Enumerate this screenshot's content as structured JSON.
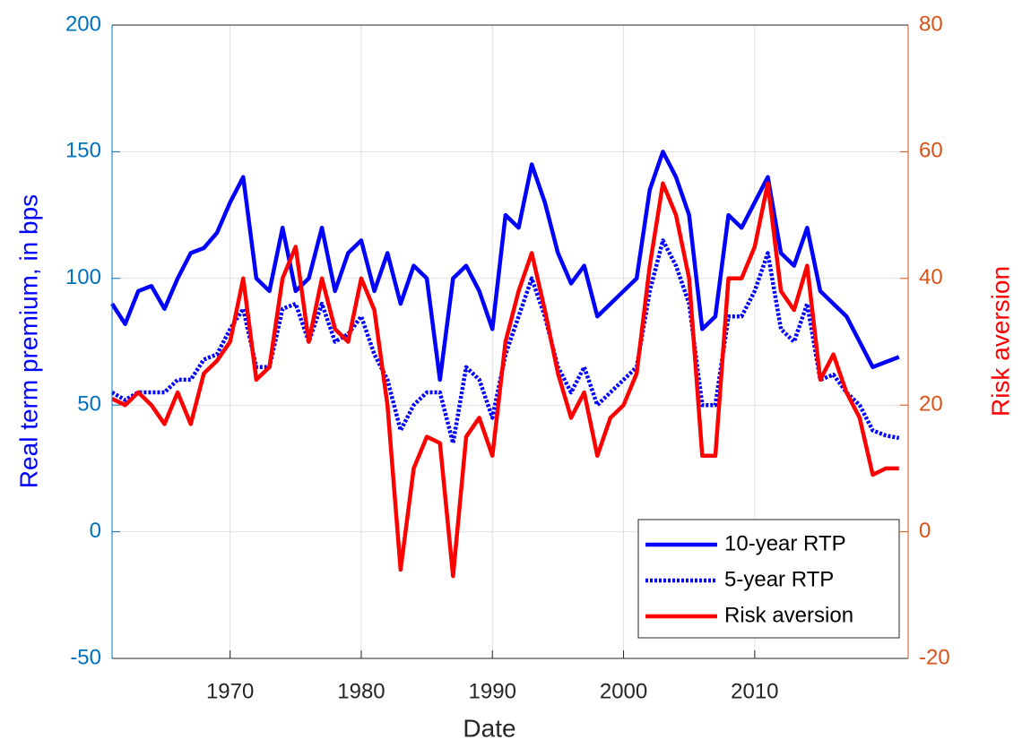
{
  "chart_data": {
    "type": "line",
    "x_label": "Date",
    "y_label": "Real term premium, in bps",
    "y2_label": "Risk aversion",
    "x": [
      1961,
      1962,
      1963,
      1964,
      1965,
      1966,
      1967,
      1968,
      1969,
      1970,
      1971,
      1972,
      1973,
      1974,
      1975,
      1976,
      1977,
      1978,
      1979,
      1980,
      1981,
      1982,
      1983,
      1984,
      1985,
      1986,
      1987,
      1988,
      1989,
      1990,
      1991,
      1992,
      1993,
      1994,
      1995,
      1996,
      1997,
      1998,
      1999,
      2000,
      2001,
      2002,
      2003,
      2004,
      2005,
      2006,
      2007,
      2008,
      2009,
      2010,
      2011,
      2012,
      2013,
      2014,
      2015,
      2016,
      2017,
      2018,
      2019,
      2020,
      2021
    ],
    "series": [
      {
        "name": "10-year RTP",
        "color": "#0000ff",
        "line_style": "solid",
        "axis": "y",
        "values": [
          90,
          82,
          95,
          97,
          88,
          100,
          110,
          112,
          118,
          130,
          140,
          100,
          95,
          120,
          95,
          100,
          120,
          95,
          110,
          115,
          95,
          110,
          90,
          105,
          100,
          60,
          100,
          105,
          95,
          80,
          125,
          120,
          145,
          130,
          110,
          98,
          105,
          85,
          90,
          95,
          100,
          135,
          150,
          140,
          125,
          80,
          85,
          125,
          120,
          130,
          140,
          110,
          105,
          120,
          95,
          90,
          85,
          75,
          65,
          67,
          69
        ]
      },
      {
        "name": "5-year RTP",
        "color": "#0000ff",
        "line_style": "dotted",
        "axis": "y",
        "values": [
          55,
          52,
          55,
          55,
          55,
          60,
          60,
          68,
          70,
          80,
          88,
          65,
          65,
          88,
          90,
          75,
          90,
          75,
          78,
          85,
          70,
          60,
          40,
          50,
          55,
          55,
          35,
          65,
          60,
          45,
          70,
          85,
          100,
          85,
          65,
          55,
          65,
          50,
          55,
          60,
          65,
          95,
          115,
          105,
          90,
          50,
          50,
          85,
          85,
          95,
          110,
          80,
          75,
          90,
          60,
          62,
          55,
          50,
          40,
          38,
          37
        ]
      },
      {
        "name": "Risk aversion",
        "color": "#ff0000",
        "line_style": "solid",
        "axis": "y2",
        "values": [
          21,
          20,
          22,
          20,
          17,
          22,
          17,
          25,
          27,
          30,
          40,
          24,
          26,
          40,
          45,
          30,
          40,
          32,
          30,
          40,
          35,
          20,
          -6,
          10,
          15,
          14,
          -7,
          15,
          18,
          12,
          30,
          38,
          44,
          35,
          25,
          18,
          22,
          12,
          18,
          20,
          25,
          42,
          55,
          50,
          40,
          12,
          12,
          40,
          40,
          45,
          55,
          38,
          35,
          42,
          24,
          28,
          22,
          18,
          9,
          10,
          10
        ]
      }
    ],
    "xlim": [
      1961,
      2021.7
    ],
    "xticks": [
      1970,
      1980,
      1990,
      2000,
      2010
    ],
    "ylim": [
      -50,
      200
    ],
    "yticks": [
      -50,
      0,
      50,
      100,
      150,
      200
    ],
    "y2lim": [
      -20,
      80
    ],
    "y2ticks": [
      -20,
      0,
      20,
      40,
      60,
      80
    ],
    "grid": true,
    "legend": "lower-right",
    "y_axis_color": "#0072bd",
    "y_label_color": "#0000ff",
    "y2_axis_color": "#d95319",
    "y2_label_color": "#ff0000"
  }
}
